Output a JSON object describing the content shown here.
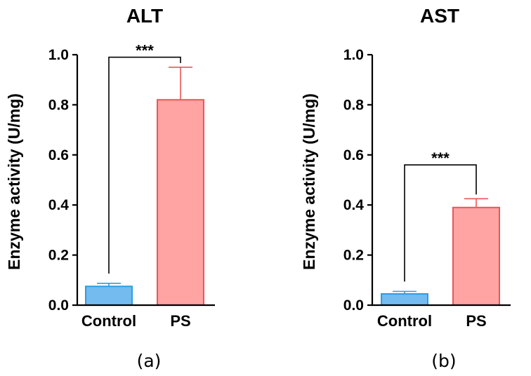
{
  "chart_data": [
    {
      "type": "bar",
      "title": "ALT",
      "panel_label": "(a)",
      "ylabel": "Enzyme activity (U/mg)",
      "xlabel": "",
      "ylim": [
        0,
        1.0
      ],
      "yticks": [
        "0.0",
        "0.2",
        "0.4",
        "0.6",
        "0.8",
        "1.0"
      ],
      "categories": [
        "Control",
        "PS"
      ],
      "values": [
        0.075,
        0.82
      ],
      "errors": [
        0.012,
        0.13
      ],
      "colors": {
        "fill": [
          "#74bbf0",
          "#ffa3a3"
        ],
        "stroke": [
          "#2e9de0",
          "#ee5555"
        ]
      },
      "significance": {
        "label": "***",
        "between": [
          "Control",
          "PS"
        ],
        "value_level": 0.99
      }
    },
    {
      "type": "bar",
      "title": "AST",
      "panel_label": "(b)",
      "ylabel": "Enzyme activity (U/mg)",
      "xlabel": "",
      "ylim": [
        0,
        1.0
      ],
      "yticks": [
        "0.0",
        "0.2",
        "0.4",
        "0.6",
        "0.8",
        "1.0"
      ],
      "categories": [
        "Control",
        "PS"
      ],
      "values": [
        0.045,
        0.39
      ],
      "errors": [
        0.01,
        0.035
      ],
      "colors": {
        "fill": [
          "#74bbf0",
          "#ffa3a3"
        ],
        "stroke": [
          "#2e9de0",
          "#ee5555"
        ]
      },
      "significance": {
        "label": "***",
        "between": [
          "Control",
          "PS"
        ],
        "value_level": 0.56
      }
    }
  ]
}
